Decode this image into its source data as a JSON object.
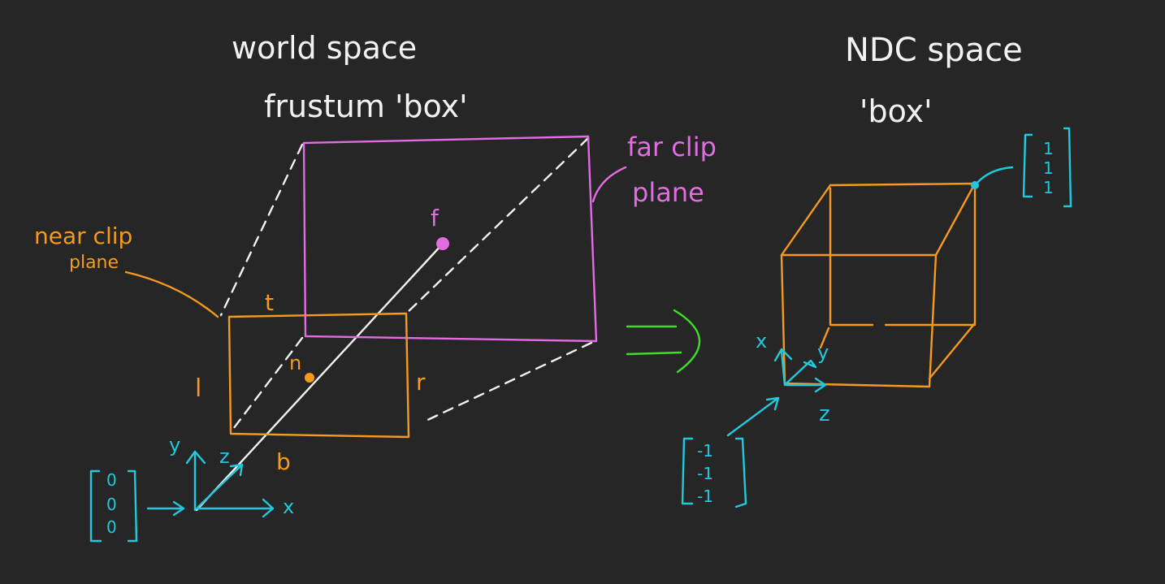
{
  "world": {
    "title_line1": "world space",
    "title_line2": "frustum 'box'"
  },
  "ndc": {
    "title_line1": "NDC space",
    "title_line2": "'box'"
  },
  "labels": {
    "near_clip_1": "near clip",
    "near_clip_2": "plane",
    "far_clip_1": "far clip",
    "far_clip_2": "plane",
    "top": "t",
    "left": "l",
    "right": "r",
    "bottom": "b",
    "near_point": "n",
    "far_point": "f",
    "world_axis_y": "y",
    "world_axis_z": "z",
    "world_axis_x": "x",
    "ndc_axis_x": "x",
    "ndc_axis_y": "y",
    "ndc_axis_z": "z"
  },
  "vectors": {
    "origin": [
      "0",
      "0",
      "0"
    ],
    "ndc_max": [
      "1",
      "1",
      "1"
    ],
    "ndc_min": [
      "-1",
      "-1",
      "-1"
    ]
  },
  "colors": {
    "background": "#262626",
    "near_plane": "#f59a1f",
    "far_plane": "#e36ce3",
    "axes_and_vectors": "#22c8dc",
    "frustum_edges": "#f2f2f2",
    "transform_arrow": "#3fdc2a"
  }
}
